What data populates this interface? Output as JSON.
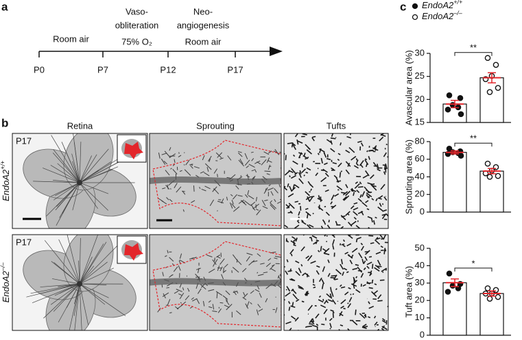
{
  "panel_labels": [
    "a",
    "b",
    "c"
  ],
  "timeline": {
    "days": [
      "P0",
      "P7",
      "P12",
      "P17"
    ],
    "phases": [
      [
        "Room air"
      ],
      [
        "Vaso-",
        "obliteration",
        "75% O₂"
      ],
      [
        "Neo-",
        "angiogenesis",
        "Room air"
      ]
    ]
  },
  "images": {
    "columns": [
      "Retina",
      "Sprouting",
      "Tufts"
    ],
    "rows": [
      {
        "genotype": "EndoA2",
        "sup": "+/+",
        "stage": "P17"
      },
      {
        "genotype": "EndoA2",
        "sup": "–/–",
        "stage": "P17"
      }
    ]
  },
  "chart_data": [
    {
      "type": "bar",
      "ylabel": "Avascular area (%)",
      "ylim": [
        15,
        30
      ],
      "yticks": [
        15,
        20,
        25,
        30
      ],
      "significance": "**",
      "error_color": "#e3262b",
      "series": [
        {
          "name": "EndoA2",
          "sup": "+/+",
          "marker": "filled",
          "mean": 19.0,
          "error": 0.8,
          "points": [
            20.9,
            20.3,
            18.8,
            18.3,
            17.8,
            16.8
          ]
        },
        {
          "name": "EndoA2",
          "sup": "–/–",
          "marker": "open",
          "mean": 24.7,
          "error": 1.1,
          "points": [
            29.0,
            27.5,
            25.1,
            24.4,
            22.5,
            21.6
          ]
        }
      ]
    },
    {
      "type": "bar",
      "ylabel": "Sprouting area (%)",
      "ylim": [
        0,
        80
      ],
      "yticks": [
        0,
        20,
        40,
        60,
        80
      ],
      "significance": "**",
      "error_color": "#e3262b",
      "series": [
        {
          "marker": "filled",
          "mean": 67.8,
          "error": 1.8,
          "points": [
            72,
            69,
            68,
            67,
            66,
            64
          ]
        },
        {
          "marker": "open",
          "mean": 46.5,
          "error": 3.0,
          "points": [
            55,
            51,
            47,
            44,
            41,
            40
          ]
        }
      ]
    },
    {
      "type": "bar",
      "ylabel": "Tuft area (%)",
      "ylim": [
        0,
        50
      ],
      "yticks": [
        0,
        10,
        20,
        30,
        40,
        50
      ],
      "significance": "*",
      "error_color": "#e3262b",
      "series": [
        {
          "marker": "filled",
          "mean": 30.2,
          "error": 2.2,
          "points": [
            35.5,
            29.5,
            28.5,
            27,
            25
          ]
        },
        {
          "marker": "open",
          "mean": 24.0,
          "error": 1.5,
          "points": [
            27,
            26,
            24,
            24,
            22,
            21
          ]
        }
      ]
    }
  ]
}
